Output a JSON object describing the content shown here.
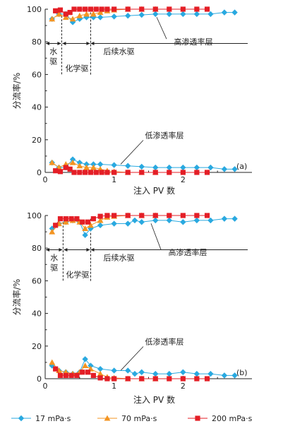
{
  "legend": [
    {
      "name": "17 mPa·s",
      "color": "#29a9e0",
      "marker": "diamond"
    },
    {
      "name": "70 mPa·s",
      "color": "#f39422",
      "marker": "triangle"
    },
    {
      "name": "200 mPa·s",
      "color": "#e41e26",
      "marker": "square"
    }
  ],
  "chart_data": [
    {
      "type": "line",
      "panel_label": "(a)",
      "xlabel": "注入 PV 数",
      "ylabel": "分流率/%",
      "xlim": [
        0,
        3
      ],
      "ylim": [
        0,
        100
      ],
      "x_ticks": [
        0,
        1,
        2
      ],
      "y_ticks": [
        0,
        20,
        40,
        60,
        80,
        100
      ],
      "annotations": {
        "high": "高渗透率层",
        "low": "低渗透率层",
        "water": "水驱",
        "chemical": "化学驱",
        "post_water": "后续水驱"
      },
      "stage_boundaries": [
        0.24,
        0.66
      ],
      "series": [
        {
          "name": "17 mPa·s",
          "x": [
            0.1,
            0.2,
            0.3,
            0.4,
            0.5,
            0.6,
            0.7,
            0.8,
            1.0,
            1.2,
            1.4,
            1.6,
            1.8,
            2.0,
            2.2,
            2.4,
            2.6,
            2.75
          ],
          "y": [
            94,
            97,
            97,
            92,
            94,
            95,
            95,
            95,
            95.5,
            96,
            96.5,
            97,
            97,
            97,
            97,
            97,
            98,
            98
          ]
        },
        {
          "name": "70 mPa·s",
          "x": [
            0.1,
            0.2,
            0.3,
            0.4,
            0.5,
            0.6,
            0.7,
            0.8,
            0.9,
            1.0,
            1.2,
            1.4,
            1.6
          ],
          "y": [
            94,
            97,
            95,
            94,
            96,
            97,
            97,
            98,
            99,
            99.5,
            100,
            100,
            100
          ]
        },
        {
          "name": "200 mPa·s",
          "x": [
            0.15,
            0.22,
            0.3,
            0.36,
            0.42,
            0.5,
            0.58,
            0.66,
            0.74,
            0.82,
            0.9,
            1.0,
            1.2,
            1.4,
            1.6,
            1.8,
            2.0,
            2.2,
            2.35
          ],
          "y": [
            99,
            99.5,
            97,
            98,
            100,
            100,
            100,
            100,
            100,
            100,
            100,
            100,
            100,
            100,
            100,
            100,
            100,
            100,
            100
          ]
        }
      ],
      "low_series": [
        {
          "name": "17 mPa·s",
          "x": [
            0.1,
            0.2,
            0.3,
            0.4,
            0.5,
            0.6,
            0.7,
            0.8,
            1.0,
            1.2,
            1.4,
            1.6,
            1.8,
            2.0,
            2.2,
            2.4,
            2.6,
            2.75
          ],
          "y": [
            6,
            3,
            3,
            8,
            6,
            5,
            5,
            5,
            4.5,
            4,
            3.5,
            3,
            3,
            3,
            3,
            3,
            2,
            2
          ]
        },
        {
          "name": "70 mPa·s",
          "x": [
            0.1,
            0.2,
            0.3,
            0.4,
            0.5,
            0.6,
            0.7,
            0.8,
            0.9,
            1.0,
            1.2,
            1.4,
            1.6
          ],
          "y": [
            6,
            3,
            5,
            6,
            4,
            3,
            3,
            2,
            1,
            0.5,
            0,
            0,
            0
          ]
        },
        {
          "name": "200 mPa·s",
          "x": [
            0.15,
            0.22,
            0.3,
            0.36,
            0.42,
            0.5,
            0.58,
            0.66,
            0.74,
            0.82,
            0.9,
            1.0,
            1.2,
            1.4,
            1.6,
            1.8,
            2.0,
            2.2,
            2.35
          ],
          "y": [
            1,
            0.5,
            3,
            2,
            0,
            0,
            0,
            0,
            0,
            0,
            0,
            0,
            0,
            0,
            0,
            0,
            0,
            0,
            0
          ]
        }
      ]
    },
    {
      "type": "line",
      "panel_label": "(b)",
      "xlabel": "注入 PV 数",
      "ylabel": "分流率/%",
      "xlim": [
        0,
        3
      ],
      "ylim": [
        0,
        100
      ],
      "x_ticks": [
        0,
        1,
        2
      ],
      "y_ticks": [
        0,
        20,
        40,
        60,
        80,
        100
      ],
      "annotations": {
        "high": "高渗透率层",
        "low": "低渗透率层",
        "water": "水驱",
        "chemical": "化学驱",
        "post_water": "后续水驱"
      },
      "stage_boundaries": [
        0.26,
        0.66
      ],
      "series": [
        {
          "name": "17 mPa·s",
          "x": [
            0.1,
            0.2,
            0.3,
            0.4,
            0.5,
            0.58,
            0.66,
            0.8,
            1.0,
            1.2,
            1.3,
            1.4,
            1.6,
            1.8,
            2.0,
            2.2,
            2.4,
            2.6,
            2.75
          ],
          "y": [
            92,
            95,
            96,
            97,
            96,
            88,
            92,
            94,
            95,
            95,
            97,
            96,
            97,
            97,
            96,
            97,
            97,
            98,
            98
          ]
        },
        {
          "name": "70 mPa·s",
          "x": [
            0.1,
            0.2,
            0.3,
            0.4,
            0.5,
            0.58,
            0.66,
            0.8,
            0.9,
            1.0,
            1.2,
            1.4,
            1.6
          ],
          "y": [
            90,
            95,
            96,
            97,
            96,
            92,
            94,
            97,
            99,
            99.5,
            100,
            100,
            100
          ]
        },
        {
          "name": "200 mPa·s",
          "x": [
            0.15,
            0.22,
            0.3,
            0.38,
            0.46,
            0.54,
            0.62,
            0.7,
            0.8,
            0.9,
            1.0,
            1.2,
            1.4,
            1.6,
            1.8,
            2.0,
            2.2,
            2.35
          ],
          "y": [
            94,
            98,
            98,
            98,
            98,
            96,
            96,
            98,
            99.5,
            100,
            100,
            100,
            100,
            100,
            100,
            100,
            100,
            100
          ]
        }
      ],
      "low_series": [
        {
          "name": "17 mPa·s",
          "x": [
            0.1,
            0.2,
            0.3,
            0.4,
            0.5,
            0.58,
            0.66,
            0.8,
            1.0,
            1.2,
            1.3,
            1.4,
            1.6,
            1.8,
            2.0,
            2.2,
            2.4,
            2.6,
            2.75
          ],
          "y": [
            8,
            5,
            4,
            3,
            4,
            12,
            8,
            6,
            5,
            5,
            3,
            4,
            3,
            3,
            4,
            3,
            3,
            2,
            2
          ]
        },
        {
          "name": "70 mPa·s",
          "x": [
            0.1,
            0.2,
            0.3,
            0.4,
            0.5,
            0.58,
            0.66,
            0.8,
            0.9,
            1.0,
            1.2,
            1.4,
            1.6
          ],
          "y": [
            10,
            5,
            4,
            3,
            4,
            8,
            6,
            3,
            1,
            0.5,
            0,
            0,
            0
          ]
        },
        {
          "name": "200 mPa·s",
          "x": [
            0.15,
            0.22,
            0.3,
            0.38,
            0.46,
            0.54,
            0.62,
            0.7,
            0.8,
            0.9,
            1.0,
            1.2,
            1.4,
            1.6,
            1.8,
            2.0,
            2.2,
            2.35
          ],
          "y": [
            6,
            2,
            2,
            2,
            2,
            4,
            4,
            2,
            0.5,
            0,
            0,
            0,
            0,
            0,
            0,
            0,
            0,
            0
          ]
        }
      ]
    }
  ]
}
